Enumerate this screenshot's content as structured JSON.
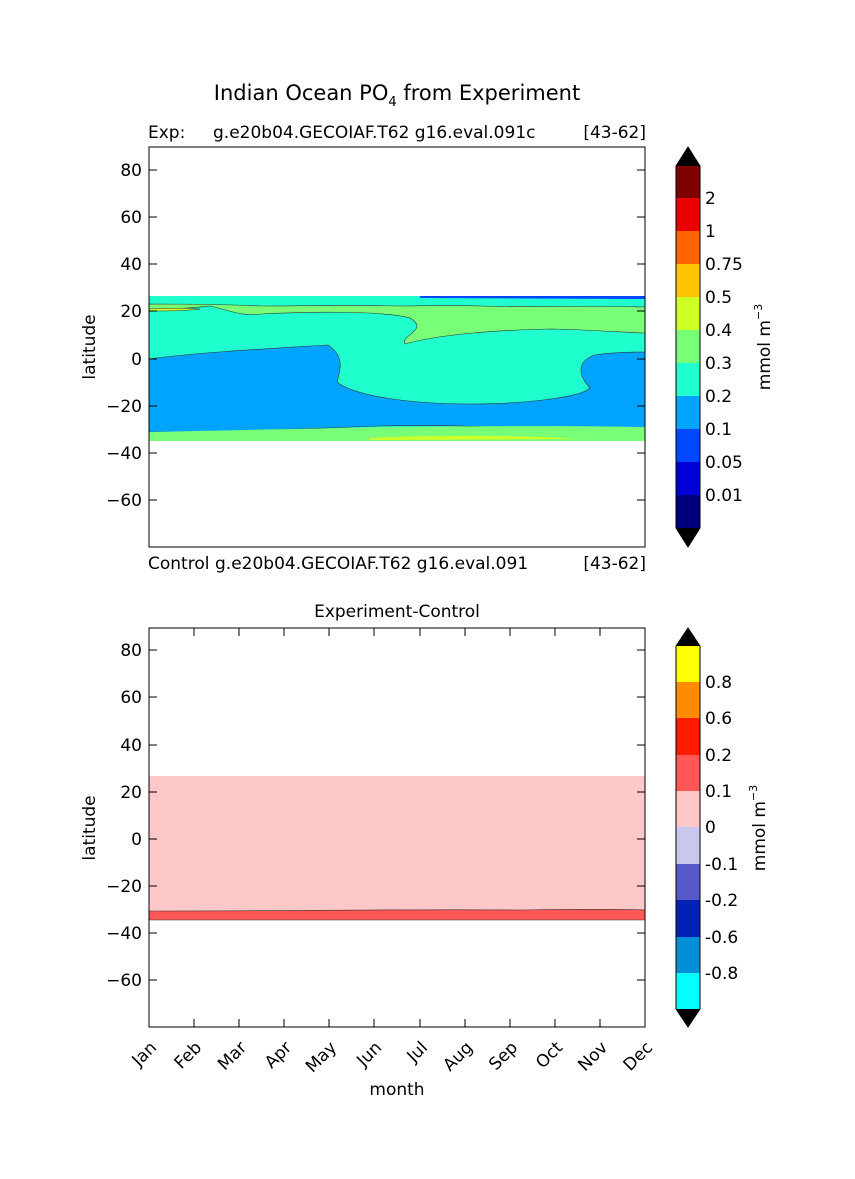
{
  "figure": {
    "title_main": "Indian Ocean PO",
    "title_sub": "4",
    "title_rest": " from Experiment"
  },
  "chart_data": [
    {
      "type": "contour",
      "panel": "experiment",
      "title_left": "Exp:",
      "title_center": "g.e20b04.GECOIAF.T62 g16.eval.091c",
      "title_right": "[43-62]",
      "xlabel_left": "Control",
      "xlabel_center": "g.e20b04.GECOIAF.T62 g16.eval.091",
      "xlabel_right": "[43-62]",
      "ylabel": "latitude",
      "ylim": [
        -80,
        90
      ],
      "xlim": [
        0,
        11
      ],
      "yticks": [
        80,
        60,
        40,
        20,
        0,
        -20,
        -40,
        -60
      ],
      "ytick_labels": [
        "80",
        "60",
        "40",
        "20",
        "0",
        "−20",
        "−40",
        "−60"
      ],
      "x_months": [
        "Jan",
        "Feb",
        "Mar",
        "Apr",
        "May",
        "Jun",
        "Jul",
        "Aug",
        "Sep",
        "Oct",
        "Nov",
        "Dec"
      ],
      "data_extent_lat": [
        -34,
        27
      ],
      "colorbar": {
        "label": "mmol m",
        "label_sup": "−3",
        "levels": [
          "0.01",
          "0.05",
          "0.1",
          "0.2",
          "0.3",
          "0.4",
          "0.5",
          "0.75",
          "1",
          "2"
        ],
        "colors": [
          "#00007f",
          "#0000d7",
          "#0048ff",
          "#00a4ff",
          "#20ffce",
          "#78ff77",
          "#ceff27",
          "#ffc400",
          "#ff6300",
          "#ea0000",
          "#7f0000"
        ],
        "under_color": "#000000",
        "over_color": "#000000"
      },
      "bands": [
        {
          "level": "0.2",
          "color": "#20ffce",
          "lat_range": [
            -34,
            27
          ]
        },
        {
          "level": "0.1",
          "color": "#00a4ff",
          "lat_range": [
            -30,
            4
          ]
        },
        {
          "level": "0.3",
          "color": "#78ff77",
          "lat_range": [
            10,
            23
          ]
        }
      ]
    },
    {
      "type": "contour",
      "panel": "difference",
      "title": "Experiment-Control",
      "xlabel": "month",
      "ylabel": "latitude",
      "ylim": [
        -80,
        90
      ],
      "xlim": [
        0,
        11
      ],
      "yticks": [
        80,
        60,
        40,
        20,
        0,
        -20,
        -40,
        -60
      ],
      "ytick_labels": [
        "80",
        "60",
        "40",
        "20",
        "0",
        "−20",
        "−40",
        "−60"
      ],
      "categories": [
        "Jan",
        "Feb",
        "Mar",
        "Apr",
        "May",
        "Jun",
        "Jul",
        "Aug",
        "Sep",
        "Oct",
        "Nov",
        "Dec"
      ],
      "colorbar": {
        "label": "mmol m",
        "label_sup": "−3",
        "levels": [
          "-0.8",
          "-0.6",
          "-0.2",
          "-0.1",
          "0",
          "0.1",
          "0.2",
          "0.6",
          "0.8"
        ],
        "colors": [
          "#00ffff",
          "#008fd7",
          "#0022b5",
          "#5657c9",
          "#c8c8ee",
          "#ffc8c8",
          "#ff5656",
          "#ff1c00",
          "#ff8c00",
          "#ffff00"
        ],
        "under_color": "#000000",
        "over_color": "#000000"
      },
      "bands": [
        {
          "level": "0 to 0.1",
          "color": "#ffc8c8",
          "lat_range": [
            -30,
            27
          ]
        },
        {
          "level": "0.1 to 0.2",
          "color": "#ff5656",
          "lat_range": [
            -34,
            -30
          ]
        }
      ]
    }
  ]
}
